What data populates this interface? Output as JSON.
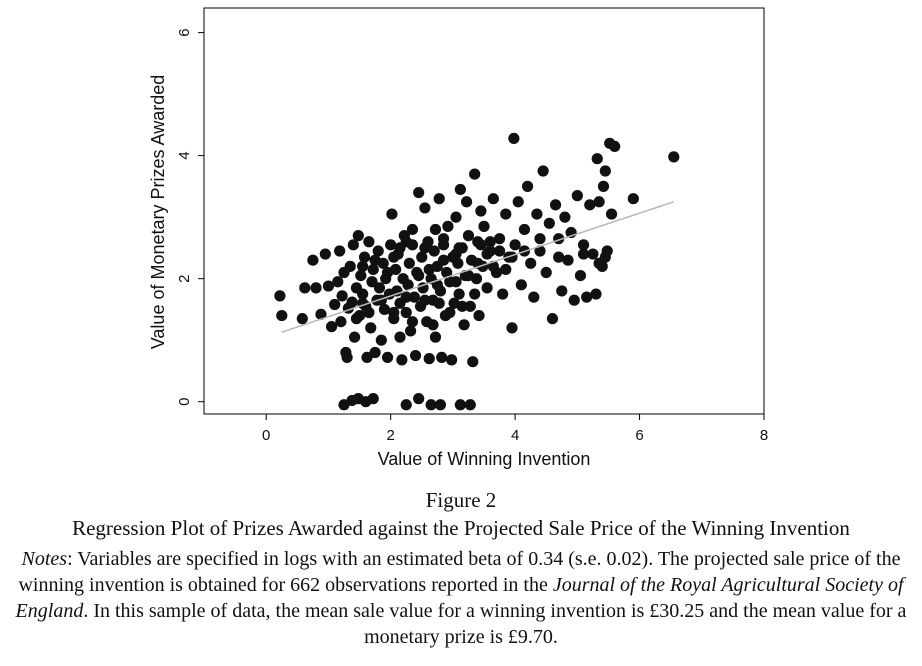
{
  "figure": {
    "label": "Figure 2",
    "title": "Regression Plot of Prizes Awarded against the Projected Sale Price of the Winning Invention",
    "notes_label": "Notes",
    "notes_part1": ":  Variables are specified in logs with an estimated beta of 0.34 (s.e. 0.02). The projected sale price of the winning invention is obtained for 662 observations reported in the ",
    "notes_journal": "Journal of the Royal Agricultural Society of England",
    "notes_part2": ". In this sample of data, the mean sale value for a winning invention is £30.25 and the mean value for a monetary prize is £9.70."
  },
  "colors": {
    "points": "#111111",
    "fit_line": "#b8b8b8",
    "axis": "#000000"
  },
  "chart_data": {
    "type": "scatter",
    "xlabel": "Value of Winning Invention",
    "ylabel": "Value of Monetary Prizes Awarded",
    "xlim": [
      -1,
      8
    ],
    "ylim": [
      -0.2,
      6.4
    ],
    "xticks": [
      0,
      2,
      4,
      6,
      8
    ],
    "yticks": [
      0,
      2,
      4,
      6
    ],
    "fit_line": {
      "x": [
        0.25,
        6.55
      ],
      "y": [
        1.13,
        3.25
      ]
    },
    "points": [
      [
        0.22,
        1.72
      ],
      [
        0.25,
        1.4
      ],
      [
        0.58,
        1.35
      ],
      [
        0.62,
        1.85
      ],
      [
        0.75,
        2.3
      ],
      [
        0.8,
        1.85
      ],
      [
        0.88,
        1.42
      ],
      [
        0.95,
        2.4
      ],
      [
        1.0,
        1.88
      ],
      [
        1.05,
        1.22
      ],
      [
        1.1,
        1.58
      ],
      [
        1.15,
        1.95
      ],
      [
        1.18,
        2.45
      ],
      [
        1.2,
        1.3
      ],
      [
        1.22,
        1.72
      ],
      [
        1.25,
        2.1
      ],
      [
        1.28,
        0.8
      ],
      [
        1.3,
        0.72
      ],
      [
        1.32,
        1.52
      ],
      [
        1.35,
        2.2
      ],
      [
        1.38,
        1.62
      ],
      [
        1.4,
        2.55
      ],
      [
        1.42,
        1.05
      ],
      [
        1.45,
        1.85
      ],
      [
        1.48,
        2.7
      ],
      [
        1.5,
        1.4
      ],
      [
        1.52,
        2.05
      ],
      [
        1.55,
        1.75
      ],
      [
        1.58,
        2.35
      ],
      [
        1.6,
        1.55
      ],
      [
        1.62,
        0.72
      ],
      [
        1.65,
        2.6
      ],
      [
        1.68,
        1.2
      ],
      [
        1.7,
        1.95
      ],
      [
        1.72,
        2.15
      ],
      [
        1.75,
        0.8
      ],
      [
        1.78,
        1.65
      ],
      [
        1.8,
        2.45
      ],
      [
        1.82,
        1.85
      ],
      [
        1.85,
        1.0
      ],
      [
        1.88,
        2.25
      ],
      [
        1.9,
        1.5
      ],
      [
        1.92,
        2.0
      ],
      [
        1.95,
        0.72
      ],
      [
        1.98,
        1.75
      ],
      [
        2.0,
        2.55
      ],
      [
        2.02,
        3.05
      ],
      [
        2.05,
        1.35
      ],
      [
        2.08,
        2.15
      ],
      [
        2.1,
        1.8
      ],
      [
        2.12,
        2.4
      ],
      [
        2.15,
        1.6
      ],
      [
        2.18,
        0.68
      ],
      [
        2.2,
        2.0
      ],
      [
        2.22,
        2.7
      ],
      [
        2.25,
        1.45
      ],
      [
        2.28,
        1.9
      ],
      [
        2.3,
        2.25
      ],
      [
        2.32,
        1.15
      ],
      [
        2.35,
        2.55
      ],
      [
        2.38,
        1.7
      ],
      [
        2.4,
        0.75
      ],
      [
        2.42,
        2.1
      ],
      [
        2.45,
        3.4
      ],
      [
        2.48,
        1.55
      ],
      [
        2.5,
        2.35
      ],
      [
        2.52,
        1.85
      ],
      [
        2.55,
        3.15
      ],
      [
        2.58,
        1.3
      ],
      [
        2.6,
        2.6
      ],
      [
        2.62,
        0.7
      ],
      [
        2.65,
        2.0
      ],
      [
        2.68,
        1.65
      ],
      [
        2.7,
        2.45
      ],
      [
        2.72,
        1.05
      ],
      [
        2.75,
        2.2
      ],
      [
        2.78,
        3.3
      ],
      [
        2.8,
        1.8
      ],
      [
        2.82,
        0.72
      ],
      [
        2.85,
        2.55
      ],
      [
        2.88,
        1.4
      ],
      [
        2.9,
        2.1
      ],
      [
        2.92,
        2.85
      ],
      [
        2.95,
        1.95
      ],
      [
        2.98,
        0.68
      ],
      [
        3.0,
        2.35
      ],
      [
        3.02,
        1.6
      ],
      [
        3.05,
        3.0
      ],
      [
        3.08,
        2.25
      ],
      [
        3.1,
        1.75
      ],
      [
        3.12,
        3.45
      ],
      [
        3.15,
        2.5
      ],
      [
        3.18,
        1.25
      ],
      [
        3.2,
        2.05
      ],
      [
        3.22,
        3.25
      ],
      [
        3.25,
        2.7
      ],
      [
        3.28,
        1.55
      ],
      [
        3.3,
        2.3
      ],
      [
        3.32,
        0.65
      ],
      [
        3.35,
        3.7
      ],
      [
        3.38,
        2.0
      ],
      [
        3.4,
        2.6
      ],
      [
        3.42,
        1.4
      ],
      [
        3.45,
        3.1
      ],
      [
        3.48,
        2.2
      ],
      [
        3.5,
        2.85
      ],
      [
        3.55,
        1.85
      ],
      [
        3.6,
        2.45
      ],
      [
        3.65,
        3.3
      ],
      [
        3.7,
        2.1
      ],
      [
        3.75,
        2.65
      ],
      [
        3.8,
        1.75
      ],
      [
        3.85,
        3.05
      ],
      [
        3.9,
        2.35
      ],
      [
        3.95,
        1.2
      ],
      [
        3.98,
        4.28
      ],
      [
        4.0,
        2.55
      ],
      [
        4.05,
        3.25
      ],
      [
        4.1,
        1.9
      ],
      [
        4.15,
        2.8
      ],
      [
        4.2,
        3.5
      ],
      [
        4.25,
        2.25
      ],
      [
        4.3,
        1.7
      ],
      [
        4.35,
        3.05
      ],
      [
        4.4,
        2.45
      ],
      [
        4.45,
        3.75
      ],
      [
        4.5,
        2.1
      ],
      [
        4.55,
        2.9
      ],
      [
        4.6,
        1.35
      ],
      [
        4.65,
        3.2
      ],
      [
        4.7,
        2.65
      ],
      [
        4.75,
        1.8
      ],
      [
        4.8,
        3.0
      ],
      [
        4.85,
        2.3
      ],
      [
        4.9,
        2.75
      ],
      [
        4.95,
        1.65
      ],
      [
        5.0,
        3.35
      ],
      [
        5.05,
        2.05
      ],
      [
        5.1,
        2.55
      ],
      [
        5.15,
        1.7
      ],
      [
        5.2,
        3.2
      ],
      [
        5.25,
        2.4
      ],
      [
        5.3,
        1.75
      ],
      [
        5.32,
        3.95
      ],
      [
        5.35,
        3.25
      ],
      [
        5.4,
        2.2
      ],
      [
        5.42,
        3.5
      ],
      [
        5.45,
        3.75
      ],
      [
        5.48,
        2.45
      ],
      [
        5.52,
        4.2
      ],
      [
        5.55,
        3.05
      ],
      [
        5.6,
        4.15
      ],
      [
        5.9,
        3.3
      ],
      [
        6.55,
        3.98
      ],
      [
        1.25,
        -0.05
      ],
      [
        1.38,
        0.02
      ],
      [
        1.48,
        0.05
      ],
      [
        1.6,
        0.0
      ],
      [
        1.72,
        0.05
      ],
      [
        2.25,
        -0.05
      ],
      [
        2.45,
        0.05
      ],
      [
        2.65,
        -0.05
      ],
      [
        2.8,
        -0.05
      ],
      [
        3.12,
        -0.05
      ],
      [
        3.28,
        -0.05
      ],
      [
        1.55,
        2.2
      ],
      [
        1.75,
        2.3
      ],
      [
        1.95,
        2.1
      ],
      [
        2.05,
        1.45
      ],
      [
        2.15,
        1.05
      ],
      [
        2.25,
        2.6
      ],
      [
        2.35,
        1.3
      ],
      [
        2.55,
        1.65
      ],
      [
        2.62,
        2.15
      ],
      [
        2.68,
        1.25
      ],
      [
        2.72,
        2.8
      ],
      [
        2.78,
        1.6
      ],
      [
        2.85,
        2.3
      ],
      [
        2.95,
        1.45
      ],
      [
        3.05,
        2.4
      ],
      [
        3.15,
        1.55
      ],
      [
        3.25,
        2.05
      ],
      [
        3.35,
        1.75
      ],
      [
        3.45,
        2.55
      ],
      [
        3.55,
        2.4
      ],
      [
        3.65,
        2.2
      ],
      [
        3.75,
        2.45
      ],
      [
        3.85,
        2.15
      ],
      [
        1.65,
        1.45
      ],
      [
        1.85,
        1.65
      ],
      [
        2.05,
        2.35
      ],
      [
        2.45,
        2.05
      ],
      [
        2.25,
        1.7
      ],
      [
        2.75,
        1.9
      ],
      [
        3.05,
        1.95
      ],
      [
        1.45,
        1.35
      ],
      [
        1.55,
        1.6
      ],
      [
        2.15,
        2.5
      ],
      [
        2.35,
        2.8
      ],
      [
        2.55,
        2.5
      ],
      [
        2.85,
        2.65
      ],
      [
        3.1,
        2.5
      ],
      [
        3.4,
        2.25
      ],
      [
        3.6,
        2.6
      ],
      [
        3.95,
        2.35
      ],
      [
        4.15,
        2.45
      ],
      [
        4.4,
        2.65
      ],
      [
        4.7,
        2.35
      ],
      [
        5.1,
        2.4
      ],
      [
        5.35,
        2.25
      ],
      [
        5.45,
        2.35
      ]
    ]
  }
}
